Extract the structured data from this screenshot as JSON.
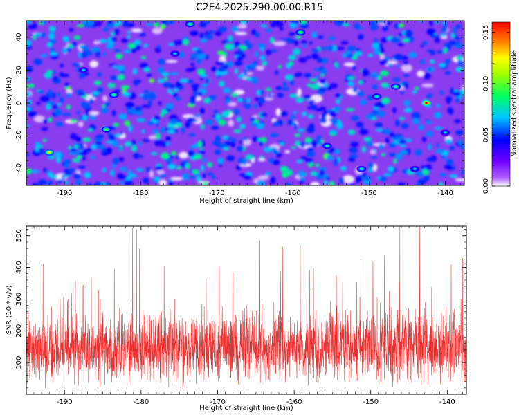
{
  "figure": {
    "title": "C2E4.2025.290.00.00.R15"
  },
  "chart_data": [
    {
      "type": "heatmap",
      "xlabel": "Height of straight line (km)",
      "ylabel": "Frequency (Hz)",
      "xlim": [
        -195,
        -137.5
      ],
      "ylim": [
        -50,
        50
      ],
      "xticks": [
        -190,
        -180,
        -170,
        -160,
        -150,
        -140
      ],
      "yticks": [
        -40,
        -20,
        0,
        20,
        40
      ],
      "colorbar": {
        "label": "Normalized spectral amplitude",
        "range": [
          0.0,
          0.16
        ],
        "ticks": [
          "0.00",
          "0.05",
          "0.10",
          "0.15"
        ],
        "colors": [
          "#ffffff",
          "#a000ff",
          "#0000ff",
          "#00ffff",
          "#00ff00",
          "#ffff00",
          "#ff8000",
          "#ff0000"
        ]
      },
      "notable_peaks": [
        {
          "x": -142.5,
          "y": 0,
          "value": 0.16
        },
        {
          "x": -192,
          "y": -30,
          "value": 0.12
        },
        {
          "x": -184.5,
          "y": -16,
          "value": 0.1
        },
        {
          "x": -183.5,
          "y": 5,
          "value": 0.09
        },
        {
          "x": -173.5,
          "y": 48,
          "value": 0.09
        },
        {
          "x": -159,
          "y": 43,
          "value": 0.09
        },
        {
          "x": -146.5,
          "y": 10,
          "value": 0.09
        },
        {
          "x": -149,
          "y": 4,
          "value": 0.08
        },
        {
          "x": -151,
          "y": -40,
          "value": 0.08
        },
        {
          "x": -155.5,
          "y": -26,
          "value": 0.08
        },
        {
          "x": -144,
          "y": -40,
          "value": 0.07
        },
        {
          "x": -175.5,
          "y": 30,
          "value": 0.07
        },
        {
          "x": -187.5,
          "y": 20,
          "value": 0.07
        },
        {
          "x": -140,
          "y": -18,
          "value": 0.07
        }
      ]
    },
    {
      "type": "line",
      "xlabel": "Height of straight line (km)",
      "ylabel": "SNR (10 * v/v)",
      "xlim": [
        -195,
        -137.5
      ],
      "ylim": [
        0,
        530
      ],
      "xticks": [
        -190,
        -180,
        -170,
        -160,
        -150,
        -140
      ],
      "yticks": [
        100,
        200,
        300,
        400,
        500
      ],
      "series": [
        {
          "name": "SNR",
          "color": "#ee3030",
          "baseline_mean": 145,
          "spread": 105,
          "spikes": [
            {
              "x": -192.8,
              "y": 410
            },
            {
              "x": -186.5,
              "y": 370
            },
            {
              "x": -183.5,
              "y": 395
            },
            {
              "x": -181.1,
              "y": 525
            },
            {
              "x": -180.6,
              "y": 520
            },
            {
              "x": -180.2,
              "y": 460
            },
            {
              "x": -177,
              "y": 405
            },
            {
              "x": -171.5,
              "y": 365
            },
            {
              "x": -169.8,
              "y": 405
            },
            {
              "x": -164.5,
              "y": 485
            },
            {
              "x": -161.5,
              "y": 465
            },
            {
              "x": -159.2,
              "y": 470
            },
            {
              "x": -154.5,
              "y": 375
            },
            {
              "x": -151.3,
              "y": 425
            },
            {
              "x": -148.2,
              "y": 440
            },
            {
              "x": -146.2,
              "y": 530
            },
            {
              "x": -143.6,
              "y": 530
            },
            {
              "x": -139.5,
              "y": 410
            },
            {
              "x": -138.0,
              "y": 430
            }
          ]
        }
      ]
    }
  ]
}
